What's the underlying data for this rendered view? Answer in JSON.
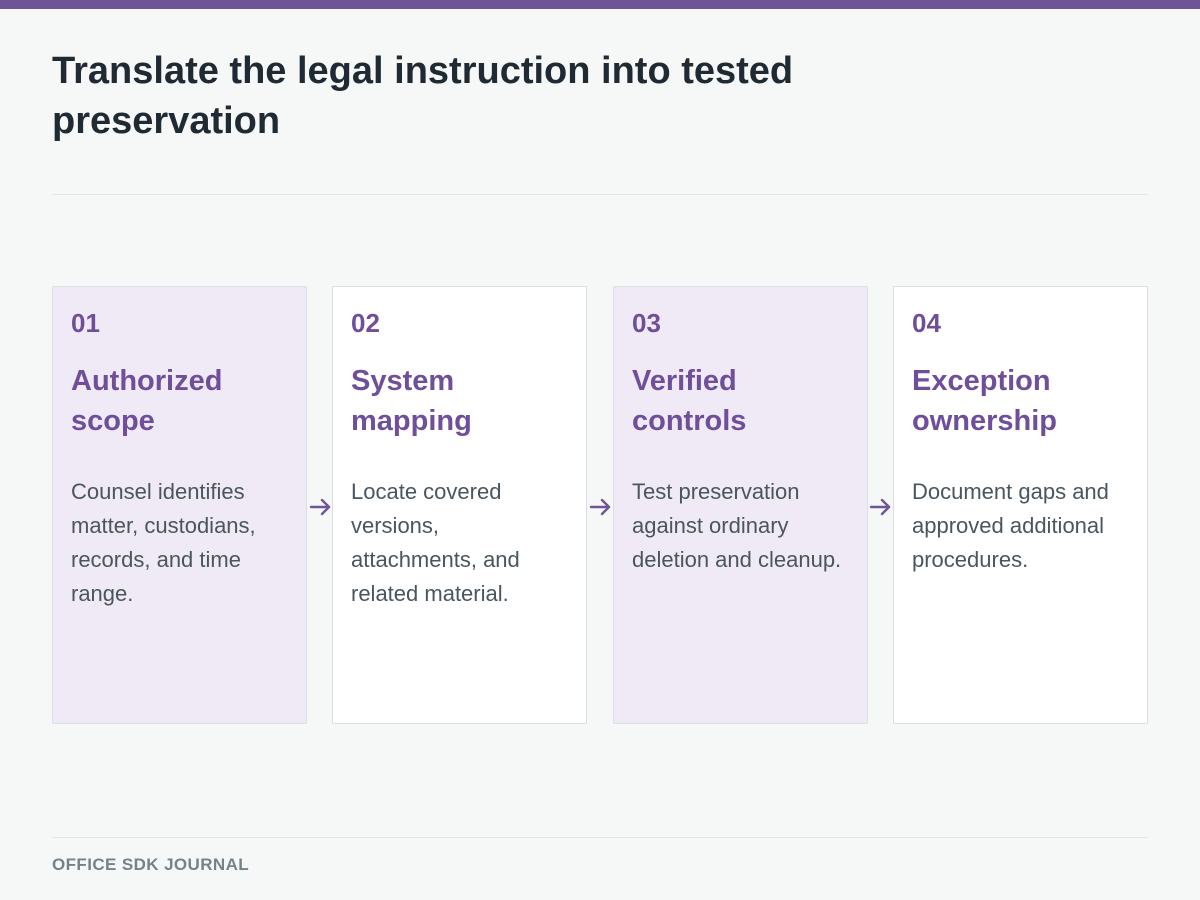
{
  "title": "Translate the legal instruction into tested preservation",
  "steps": [
    {
      "number": "01",
      "title": "Authorized scope",
      "description": "Counsel identifies matter, custodians, records, and time range."
    },
    {
      "number": "02",
      "title": "System mapping",
      "description": "Locate covered versions, attachments, and related material."
    },
    {
      "number": "03",
      "title": "Verified controls",
      "description": "Test preservation against ordinary deletion and cleanup."
    },
    {
      "number": "04",
      "title": "Exception ownership",
      "description": "Document gaps and approved additional procedures."
    }
  ],
  "footer": "OFFICE SDK JOURNAL",
  "colors": {
    "accent": "#6f5596",
    "heading_accent": "#6f4f9a",
    "tinted_card": "#f0e9f6",
    "plain_card": "#ffffff",
    "title_text": "#1f2a33",
    "body_text": "#4a565e",
    "footer_text": "#76828a"
  },
  "icons": {
    "connector": "arrow-right-icon"
  }
}
